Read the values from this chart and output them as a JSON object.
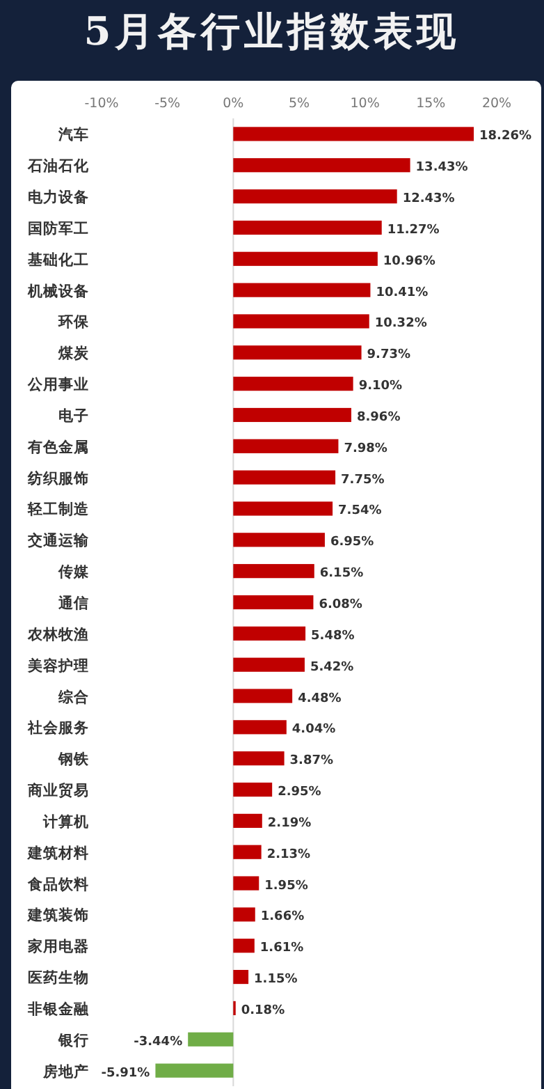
{
  "chart_data": {
    "type": "bar",
    "orientation": "horizontal",
    "title": "5月各行业指数表现",
    "categories": [
      "汽车",
      "石油石化",
      "电力设备",
      "国防军工",
      "基础化工",
      "机械设备",
      "环保",
      "煤炭",
      "公用事业",
      "电子",
      "有色金属",
      "纺织服饰",
      "轻工制造",
      "交通运输",
      "传媒",
      "通信",
      "农林牧渔",
      "美容护理",
      "综合",
      "社会服务",
      "钢铁",
      "商业贸易",
      "计算机",
      "建筑材料",
      "食品饮料",
      "建筑装饰",
      "家用电器",
      "医药生物",
      "非银金融",
      "银行",
      "房地产"
    ],
    "values": [
      18.26,
      13.43,
      12.43,
      11.27,
      10.96,
      10.41,
      10.32,
      9.73,
      9.1,
      8.96,
      7.98,
      7.75,
      7.54,
      6.95,
      6.15,
      6.08,
      5.48,
      5.42,
      4.48,
      4.04,
      3.87,
      2.95,
      2.19,
      2.13,
      1.95,
      1.66,
      1.61,
      1.15,
      0.18,
      -3.44,
      -5.91
    ],
    "value_labels": [
      "18.26%",
      "13.43%",
      "12.43%",
      "11.27%",
      "10.96%",
      "10.41%",
      "10.32%",
      "9.73%",
      "9.10%",
      "8.96%",
      "7.98%",
      "7.75%",
      "7.54%",
      "6.95%",
      "6.15%",
      "6.08%",
      "5.48%",
      "5.42%",
      "4.48%",
      "4.04%",
      "3.87%",
      "2.95%",
      "2.19%",
      "2.13%",
      "1.95%",
      "1.66%",
      "1.61%",
      "1.15%",
      "0.18%",
      "-3.44%",
      "-5.91%"
    ],
    "colors": [
      "#c00000",
      "#c00000",
      "#c00000",
      "#c00000",
      "#c00000",
      "#c00000",
      "#c00000",
      "#c00000",
      "#c00000",
      "#c00000",
      "#c00000",
      "#c00000",
      "#c00000",
      "#c00000",
      "#c00000",
      "#c00000",
      "#c00000",
      "#c00000",
      "#c00000",
      "#c00000",
      "#c00000",
      "#c00000",
      "#c00000",
      "#c00000",
      "#c00000",
      "#c00000",
      "#c00000",
      "#c00000",
      "#c00000",
      "#70ad47",
      "#70ad47"
    ],
    "xlim": [
      -10,
      20
    ],
    "xticks": [
      {
        "value": -10,
        "label": "-10%"
      },
      {
        "value": -5,
        "label": "-5%"
      },
      {
        "value": 0,
        "label": "0%"
      },
      {
        "value": 5,
        "label": "5%"
      },
      {
        "value": 10,
        "label": "10%"
      },
      {
        "value": 15,
        "label": "15%"
      },
      {
        "value": 20,
        "label": "20%"
      }
    ]
  }
}
